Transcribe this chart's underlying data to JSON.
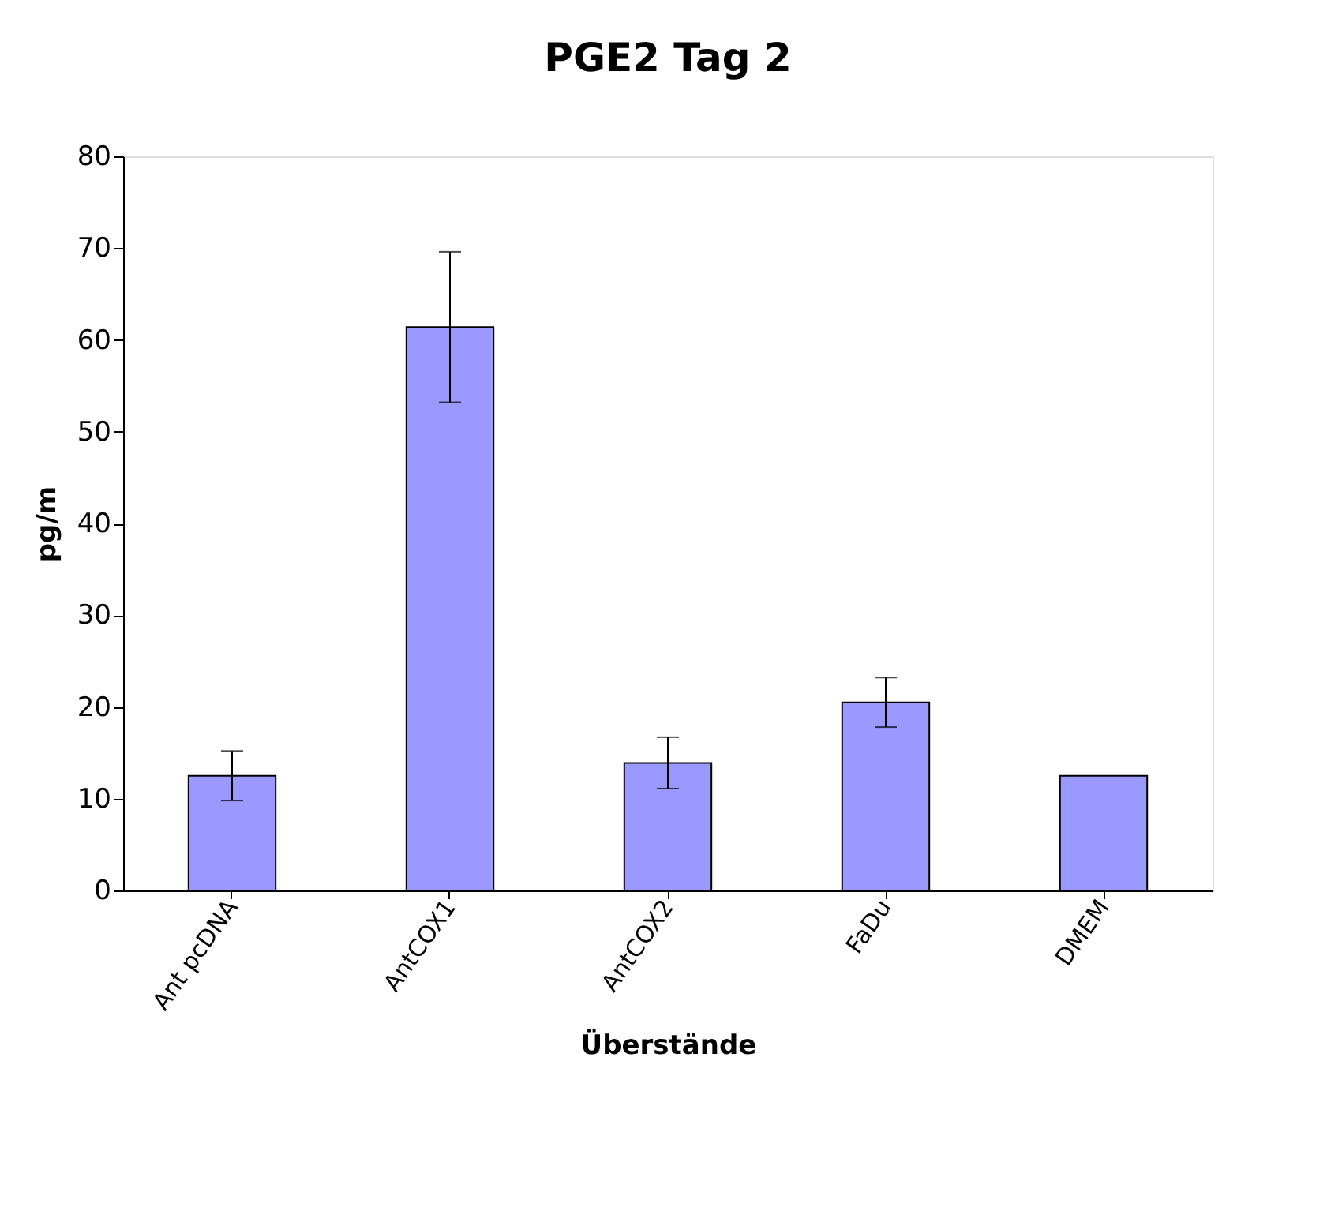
{
  "chart_data": {
    "type": "bar",
    "title": "PGE2 Tag 2",
    "xlabel": "Überstände",
    "ylabel": "pg/m",
    "categories": [
      "Ant pcDNA",
      "AntCOX1",
      "AntCOX2",
      "FaDu",
      "DMEM"
    ],
    "values": [
      12.5,
      61.4,
      13.9,
      20.5,
      12.5
    ],
    "errors": [
      2.7,
      8.2,
      2.8,
      2.7,
      null
    ],
    "color": "#9999ff",
    "ylim": [
      0,
      80
    ],
    "yticks": [
      0,
      10,
      20,
      30,
      40,
      50,
      60,
      70,
      80
    ],
    "grid": false
  }
}
